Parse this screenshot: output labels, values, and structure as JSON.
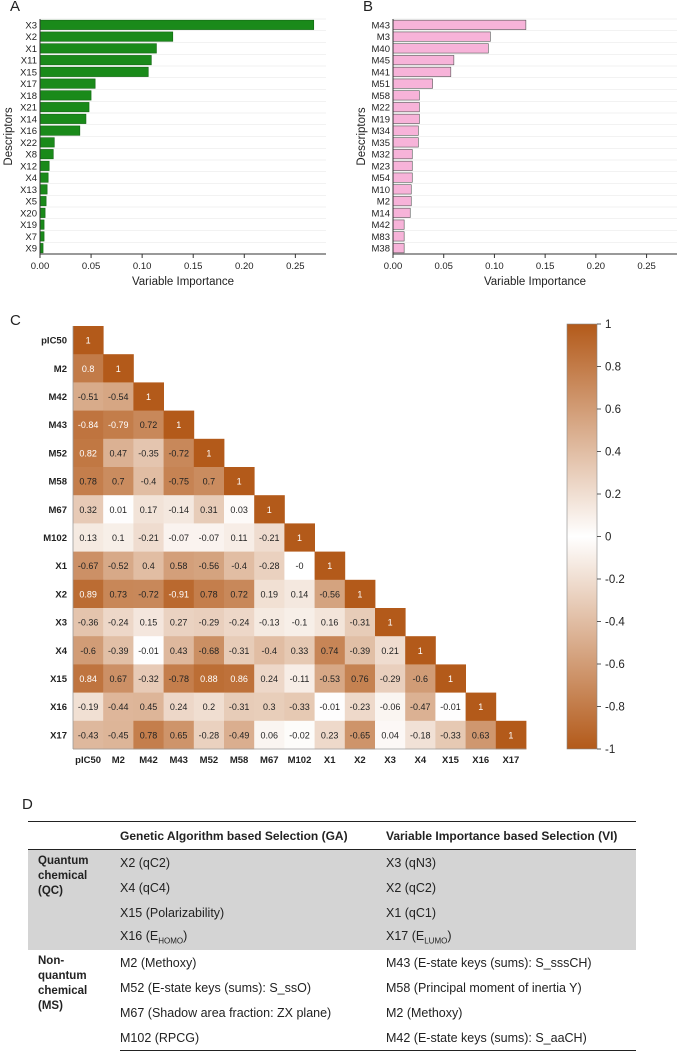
{
  "panels": {
    "a": "A",
    "b": "B",
    "c": "C",
    "d": "D"
  },
  "chart_data": [
    {
      "id": "A",
      "type": "bar",
      "orientation": "horizontal",
      "title": "",
      "xlabel": "Variable Importance",
      "ylabel": "Descriptors",
      "xlim": [
        0,
        0.28
      ],
      "xticks": [
        "0.00",
        "0.05",
        "0.10",
        "0.15",
        "0.20",
        "0.25"
      ],
      "color": "#1a8a1a",
      "categories": [
        "X3",
        "X2",
        "X1",
        "X11",
        "X15",
        "X17",
        "X18",
        "X21",
        "X14",
        "X16",
        "X22",
        "X8",
        "X12",
        "X4",
        "X13",
        "X5",
        "X20",
        "X19",
        "X7",
        "X9"
      ],
      "values": [
        0.268,
        0.13,
        0.114,
        0.109,
        0.106,
        0.054,
        0.05,
        0.048,
        0.045,
        0.039,
        0.014,
        0.013,
        0.009,
        0.008,
        0.007,
        0.006,
        0.005,
        0.004,
        0.004,
        0.003
      ]
    },
    {
      "id": "B",
      "type": "bar",
      "orientation": "horizontal",
      "title": "",
      "xlabel": "Variable Importance",
      "ylabel": "Descriptors",
      "xlim": [
        0,
        0.28
      ],
      "xticks": [
        "0.00",
        "0.05",
        "0.10",
        "0.15",
        "0.20",
        "0.25"
      ],
      "color": "#f7b3d9",
      "categories": [
        "M43",
        "M3",
        "M40",
        "M45",
        "M41",
        "M51",
        "M58",
        "M22",
        "M19",
        "M34",
        "M35",
        "M32",
        "M23",
        "M54",
        "M10",
        "M2",
        "M14",
        "M42",
        "M83",
        "M38"
      ],
      "values": [
        0.131,
        0.096,
        0.094,
        0.06,
        0.057,
        0.039,
        0.026,
        0.026,
        0.026,
        0.025,
        0.025,
        0.019,
        0.019,
        0.019,
        0.018,
        0.018,
        0.017,
        0.011,
        0.011,
        0.011
      ]
    },
    {
      "id": "C",
      "type": "heatmap",
      "title": "",
      "shape": "lower-triangle",
      "labels": [
        "pIC50",
        "M2",
        "M42",
        "M43",
        "M52",
        "M58",
        "M67",
        "M102",
        "X1",
        "X2",
        "X3",
        "X4",
        "X15",
        "X16",
        "X17"
      ],
      "rows": [
        [
          1
        ],
        [
          0.8,
          1
        ],
        [
          -0.51,
          -0.54,
          1
        ],
        [
          -0.84,
          -0.79,
          0.72,
          1
        ],
        [
          0.82,
          0.47,
          -0.35,
          -0.72,
          1
        ],
        [
          0.78,
          0.7,
          -0.4,
          -0.75,
          0.7,
          1
        ],
        [
          0.32,
          0.01,
          0.17,
          -0.14,
          0.31,
          0.03,
          1
        ],
        [
          0.13,
          0.1,
          -0.21,
          -0.07,
          -0.07,
          0.11,
          -0.21,
          1
        ],
        [
          -0.67,
          -0.52,
          0.4,
          0.58,
          -0.56,
          -0.4,
          -0.28,
          0,
          1
        ],
        [
          0.89,
          0.73,
          -0.72,
          -0.91,
          0.78,
          0.72,
          0.19,
          0.14,
          -0.56,
          1
        ],
        [
          -0.36,
          -0.24,
          0.15,
          0.27,
          -0.29,
          -0.24,
          -0.13,
          -0.1,
          0.16,
          -0.31,
          1
        ],
        [
          -0.6,
          -0.39,
          -0.01,
          0.43,
          -0.68,
          -0.31,
          -0.4,
          0.33,
          0.74,
          -0.39,
          0.21,
          1
        ],
        [
          0.84,
          0.67,
          -0.32,
          -0.78,
          0.88,
          0.86,
          0.24,
          -0.11,
          -0.53,
          0.76,
          -0.29,
          -0.6,
          1
        ],
        [
          -0.19,
          -0.44,
          0.45,
          0.24,
          0.2,
          -0.31,
          0.3,
          -0.33,
          -0.01,
          -0.23,
          -0.06,
          -0.47,
          -0.01,
          1
        ],
        [
          -0.43,
          -0.45,
          0.78,
          0.65,
          -0.28,
          -0.49,
          0.06,
          -0.02,
          0.23,
          -0.65,
          0.04,
          -0.18,
          -0.33,
          0.63,
          1
        ]
      ],
      "colorbar": {
        "range": [
          -1,
          1
        ],
        "ticks": [
          "1",
          "0.8",
          "0.6",
          "0.4",
          "0.2",
          "0",
          "-0.2",
          "-0.4",
          "-0.6",
          "-0.8",
          "-1"
        ],
        "high_color": "#b35a1a",
        "mid_color": "#ffffff"
      }
    }
  ],
  "table": {
    "headers": [
      "",
      "Genetic Algorithm based Selection (GA)",
      "Variable Importance based Selection (VI)"
    ],
    "groups": [
      {
        "category_lines": [
          "Quantum",
          "chemical",
          "(QC)"
        ],
        "rows": [
          {
            "ga": "X2 (qC2)",
            "vi": "X3 (qN3)"
          },
          {
            "ga": "X4 (qC4)",
            "vi": "X2 (qC2)"
          },
          {
            "ga": "X15 (Polarizability)",
            "vi": "X1 (qC1)"
          },
          {
            "ga_pre": "X16 (E",
            "ga_sub": "HOMO",
            "ga_post": ")",
            "vi_pre": "X17 (E",
            "vi_sub": "LUMO",
            "vi_post": ")"
          }
        ]
      },
      {
        "category_lines": [
          "Non-",
          "quantum",
          "chemical",
          "(MS)"
        ],
        "rows": [
          {
            "ga": "M2 (Methoxy)",
            "vi": "M43 (E-state keys (sums): S_sssCH)"
          },
          {
            "ga": "M52 (E-state keys (sums): S_ssO)",
            "vi": "M58 (Principal moment of inertia Y)"
          },
          {
            "ga": "M67 (Shadow area fraction: ZX plane)",
            "vi": "M2 (Methoxy)"
          },
          {
            "ga": "M102 (RPCG)",
            "vi": "M42 (E-state keys (sums): S_aaCH)"
          }
        ]
      }
    ]
  }
}
